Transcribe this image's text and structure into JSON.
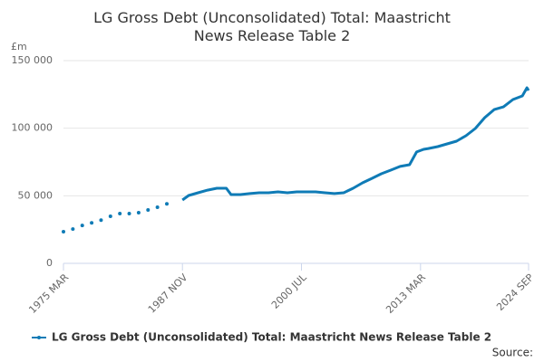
{
  "chart_data": {
    "type": "line",
    "title": "LG Gross Debt (Unconsolidated) Total: Maastricht News Release Table 2",
    "y_label": "£m",
    "source": "Source:",
    "legend": "bottom",
    "grid": true,
    "x": [
      1975.17,
      1975.67,
      1976.17,
      1976.67,
      1977.17,
      1977.67,
      1978.17,
      1978.67,
      1979.17,
      1979.67,
      1980.17,
      1980.67,
      1981.17,
      1981.67,
      1982.17,
      1982.67,
      1983.17,
      1983.67,
      1984.17,
      1984.67,
      1985.17,
      1985.67,
      1986.17,
      1986.67,
      1987.83,
      1988.5,
      1989.5,
      1990.5,
      1991.5,
      1992.5,
      1993.0,
      1994.0,
      1995.0,
      1996.0,
      1997.0,
      1998.0,
      1999.0,
      2000.0,
      2001.0,
      2002.0,
      2003.0,
      2004.0,
      2005.0,
      2006.0,
      2007.0,
      2008.0,
      2009.0,
      2010.0,
      2011.0,
      2012.0,
      2012.75,
      2013.5,
      2014.0,
      2015.0,
      2016.0,
      2017.0,
      2018.0,
      2019.0,
      2020.0,
      2021.0,
      2022.0,
      2023.0,
      2024.0,
      2024.5,
      2024.67
    ],
    "series": [
      {
        "name": "LG Gross Debt (Unconsolidated) Total: Maastricht News Release Table 2",
        "color": "#0f7bb6",
        "values": [
          23400,
          null,
          25400,
          null,
          28000,
          null,
          30000,
          null,
          32000,
          null,
          34800,
          null,
          36800,
          null,
          36800,
          null,
          37500,
          null,
          39500,
          null,
          41500,
          null,
          44000,
          null,
          46900,
          50200,
          52200,
          54200,
          55600,
          55600,
          50900,
          50900,
          51600,
          52200,
          52200,
          52900,
          52200,
          52900,
          52900,
          52900,
          52200,
          51600,
          52200,
          55600,
          59600,
          62900,
          66300,
          69000,
          71700,
          73000,
          82400,
          84400,
          85000,
          86400,
          88400,
          90400,
          94400,
          99800,
          107800,
          113800,
          115800,
          121200,
          123900,
          129900,
          127900
        ]
      }
    ],
    "xlim": [
      1975.17,
      2024.67
    ],
    "xticks": [
      {
        "value": 1975.17,
        "label": "1975 MAR"
      },
      {
        "value": 1987.83,
        "label": "1987 NOV"
      },
      {
        "value": 2000.5,
        "label": "2000 JUL"
      },
      {
        "value": 2013.17,
        "label": "2013 MAR"
      },
      {
        "value": 2024.67,
        "label": "2024 SEP"
      }
    ],
    "ylim": [
      0,
      150000
    ],
    "yticks": [
      0,
      {
        "value": 50000,
        "label": "50 000"
      },
      {
        "value": 100000,
        "label": "100 000"
      },
      {
        "value": 150000,
        "label": "150 000"
      }
    ]
  }
}
